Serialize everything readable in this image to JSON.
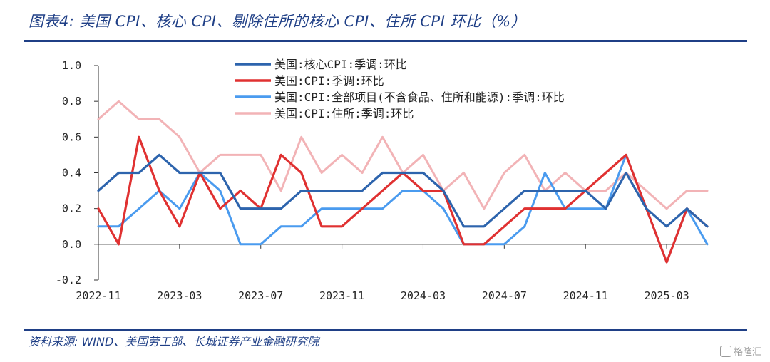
{
  "header": {
    "title": "图表4: 美国 CPI、核心 CPI、剔除住所的核心 CPI、住所 CPI 环比（%）"
  },
  "footer": {
    "source": "资料来源: WIND、美国劳工部、长城证券产业金融研究院"
  },
  "watermark": {
    "text": "格隆汇"
  },
  "chart_data": {
    "type": "line",
    "title": "图表4: 美国 CPI、核心 CPI、剔除住所的核心 CPI、住所 CPI 环比（%）",
    "xlabel": "",
    "ylabel": "%",
    "ylim": [
      -0.2,
      1.0
    ],
    "yticks": [
      1.0,
      0.8,
      0.6,
      0.4,
      0.2,
      0.0,
      -0.2
    ],
    "ytick_labels": [
      "1.0",
      "0.8",
      "0.6",
      "0.4",
      "0.2",
      "0.0",
      "-0.2"
    ],
    "xtick_labels": [
      "2022-11",
      "2023-03",
      "2023-07",
      "2023-11",
      "2024-03",
      "2024-07",
      "2024-11",
      "2025-03"
    ],
    "xtick_every": 4,
    "x": [
      "2022-11",
      "2022-12",
      "2023-01",
      "2023-02",
      "2023-03",
      "2023-04",
      "2023-05",
      "2023-06",
      "2023-07",
      "2023-08",
      "2023-09",
      "2023-10",
      "2023-11",
      "2023-12",
      "2024-01",
      "2024-02",
      "2024-03",
      "2024-04",
      "2024-05",
      "2024-06",
      "2024-07",
      "2024-08",
      "2024-09",
      "2024-10",
      "2024-11",
      "2024-12",
      "2025-01",
      "2025-02",
      "2025-03",
      "2025-04",
      "2025-05"
    ],
    "series": [
      {
        "name": "美国:核心CPI:季调:环比",
        "color": "#2d64ad",
        "width": 3.2,
        "values": [
          0.3,
          0.4,
          0.4,
          0.5,
          0.4,
          0.4,
          0.4,
          0.2,
          0.2,
          0.2,
          0.3,
          0.3,
          0.3,
          0.3,
          0.4,
          0.4,
          0.4,
          0.3,
          0.1,
          0.1,
          0.2,
          0.3,
          0.3,
          0.3,
          0.3,
          0.2,
          0.4,
          0.2,
          0.1,
          0.2,
          0.1
        ]
      },
      {
        "name": "美国:CPI:季调:环比",
        "color": "#e03131",
        "width": 3.2,
        "values": [
          0.2,
          0.0,
          0.6,
          0.3,
          0.1,
          0.4,
          0.2,
          0.3,
          0.2,
          0.5,
          0.4,
          0.1,
          0.1,
          0.2,
          0.3,
          0.4,
          0.3,
          0.3,
          0.0,
          0.0,
          0.1,
          0.2,
          0.2,
          0.2,
          0.3,
          0.4,
          0.5,
          0.2,
          -0.1,
          0.2,
          0.1
        ]
      },
      {
        "name": "美国:CPI:全部项目(不含食品、住所和能源):季调:环比",
        "color": "#4a9bef",
        "width": 3.0,
        "values": [
          0.1,
          0.1,
          0.2,
          0.3,
          0.2,
          0.4,
          0.3,
          0.0,
          0.0,
          0.1,
          0.1,
          0.2,
          0.2,
          0.2,
          0.2,
          0.3,
          0.3,
          0.2,
          0.0,
          0.0,
          0.0,
          0.1,
          0.4,
          0.2,
          0.2,
          0.2,
          0.5,
          0.2,
          -0.1,
          0.2,
          0.0
        ]
      },
      {
        "name": "美国:CPI:住所:季调:环比",
        "color": "#f2b3b6",
        "width": 3.0,
        "values": [
          0.7,
          0.8,
          0.7,
          0.7,
          0.6,
          0.4,
          0.5,
          0.5,
          0.5,
          0.3,
          0.6,
          0.4,
          0.5,
          0.4,
          0.6,
          0.4,
          0.5,
          0.3,
          0.4,
          0.2,
          0.4,
          0.5,
          0.3,
          0.4,
          0.3,
          0.3,
          0.4,
          0.3,
          0.2,
          0.3,
          0.3
        ]
      }
    ],
    "legend": "top-center"
  }
}
